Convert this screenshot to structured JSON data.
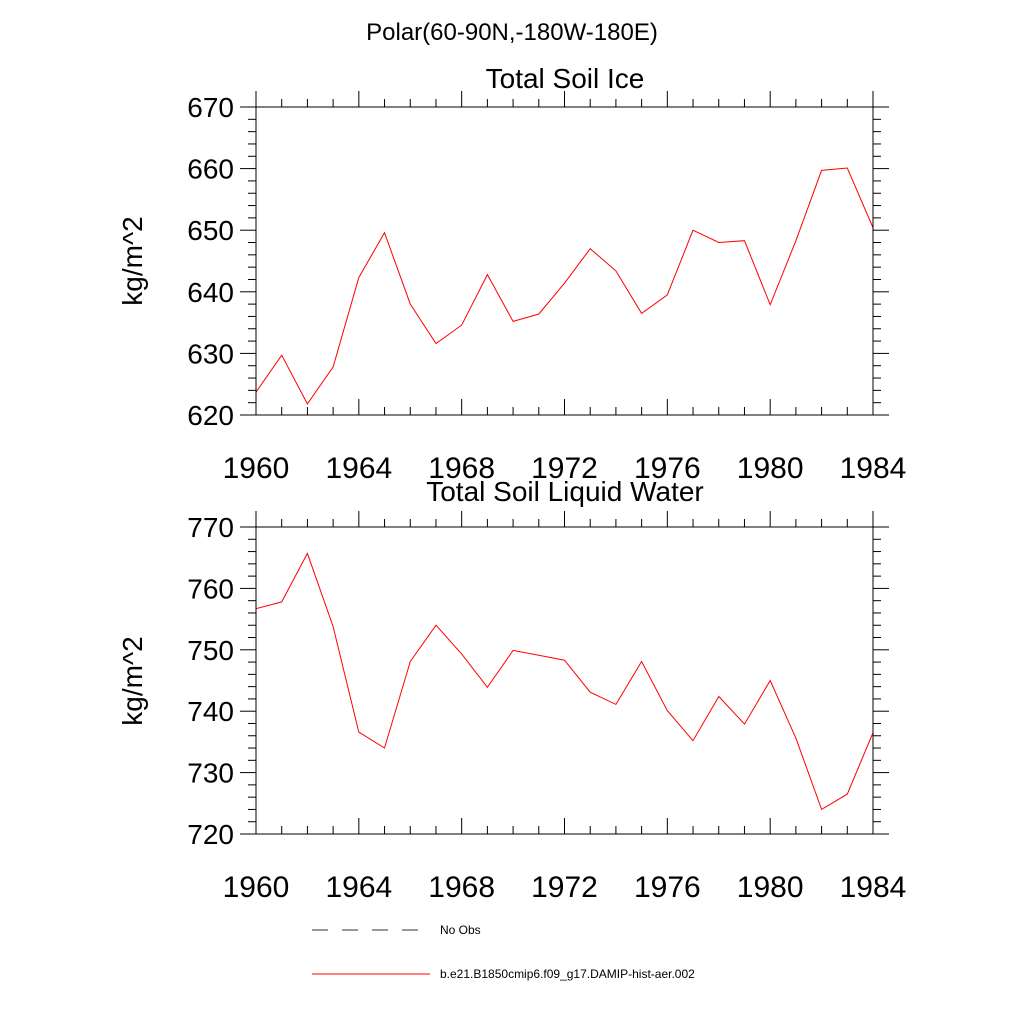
{
  "header": {
    "title": "Polar(60-90N,-180W-180E)"
  },
  "chart_data": [
    {
      "type": "line",
      "title": "Total Soil Ice",
      "xlabel": "",
      "ylabel": "kg/m^2",
      "xlim": [
        1960,
        1984
      ],
      "ylim": [
        620,
        670
      ],
      "xticks": [
        "1960",
        "1964",
        "1968",
        "1972",
        "1976",
        "1980",
        "1984"
      ],
      "yticks": [
        "620",
        "630",
        "640",
        "650",
        "660",
        "670"
      ],
      "grid": false,
      "x": [
        1960,
        1961,
        1962,
        1963,
        1964,
        1965,
        1966,
        1967,
        1968,
        1969,
        1970,
        1971,
        1972,
        1973,
        1974,
        1975,
        1976,
        1977,
        1978,
        1979,
        1980,
        1981,
        1982,
        1983,
        1984
      ],
      "series": [
        {
          "name": "b.e21.B1850cmip6.f09_g17.DAMIP-hist-aer.002",
          "color": "#ff0000",
          "values": [
            623.7,
            629.7,
            621.8,
            627.8,
            642.3,
            649.6,
            638.0,
            631.6,
            634.6,
            642.8,
            635.2,
            636.4,
            641.4,
            647.0,
            643.4,
            636.5,
            639.5,
            650.0,
            648.0,
            648.3,
            637.9,
            648.3,
            659.7,
            660.1,
            650.4
          ]
        }
      ]
    },
    {
      "type": "line",
      "title": "Total Soil Liquid Water",
      "xlabel": "",
      "ylabel": "kg/m^2",
      "xlim": [
        1960,
        1984
      ],
      "ylim": [
        720,
        770
      ],
      "xticks": [
        "1960",
        "1964",
        "1968",
        "1972",
        "1976",
        "1980",
        "1984"
      ],
      "yticks": [
        "720",
        "730",
        "740",
        "750",
        "760",
        "770"
      ],
      "grid": false,
      "x": [
        1960,
        1961,
        1962,
        1963,
        1964,
        1965,
        1966,
        1967,
        1968,
        1969,
        1970,
        1971,
        1972,
        1973,
        1974,
        1975,
        1976,
        1977,
        1978,
        1979,
        1980,
        1981,
        1982,
        1983,
        1984
      ],
      "series": [
        {
          "name": "b.e21.B1850cmip6.f09_g17.DAMIP-hist-aer.002",
          "color": "#ff0000",
          "values": [
            756.7,
            757.8,
            765.7,
            753.8,
            736.6,
            734.0,
            748.1,
            754.0,
            749.3,
            743.9,
            749.9,
            749.1,
            748.3,
            743.1,
            741.1,
            748.1,
            740.1,
            735.2,
            742.4,
            737.9,
            745.0,
            735.6,
            724.0,
            726.5,
            736.5
          ]
        }
      ]
    }
  ],
  "legend": {
    "placement": "bottom",
    "items": [
      {
        "label": "No Obs",
        "style": "dashed",
        "color": "#333333"
      },
      {
        "label": "b.e21.B1850cmip6.f09_g17.DAMIP-hist-aer.002",
        "style": "solid",
        "color": "#ff0000"
      }
    ]
  }
}
